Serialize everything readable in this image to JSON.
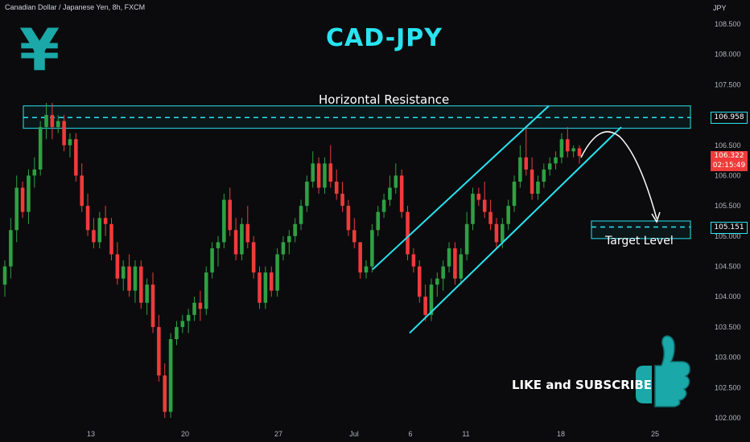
{
  "header": {
    "symbol_line": "Canadian Dollar / Japanese Yen, 8h, FXCM",
    "currency": "JPY"
  },
  "overlay": {
    "title": "CAD-JPY",
    "yen_symbol": "¥",
    "resistance_label": "Horizontal Resistance",
    "target_label": "Target Level",
    "like_label": "LIKE and SUBSCRIBE",
    "thumb_icon": "thumbs-up-icon"
  },
  "price_tags": {
    "resistance": "106.958",
    "current": "106.322",
    "countdown": "02:15:49",
    "target": "105.151"
  },
  "colors": {
    "up": "#2ea043",
    "down": "#ef3b3b",
    "accent": "#29e3f0",
    "thumb": "#1aa8a8"
  },
  "chart_data": {
    "type": "candlestick",
    "title": "",
    "xlabel": "",
    "ylabel": "",
    "ylim": [
      101.95,
      108.6
    ],
    "y_ticks": [
      "108.500",
      "108.000",
      "107.500",
      "107.000",
      "106.500",
      "106.000",
      "105.500",
      "105.000",
      "104.500",
      "104.000",
      "103.500",
      "103.000",
      "102.500",
      "102.000"
    ],
    "x_ticks": [
      "13",
      "20",
      "27",
      "Jul",
      "6",
      "11",
      "18",
      "25"
    ],
    "resistance_zone": [
      106.78,
      107.15
    ],
    "resistance_level": 106.958,
    "target_zone": [
      104.96,
      105.25
    ],
    "target_level": 105.151,
    "current_price": 106.322,
    "channel": {
      "upper": {
        "from": 104.45,
        "to": 107.15
      },
      "lower": {
        "from": 103.4,
        "to": 106.8
      }
    },
    "candles": [
      [
        104.2,
        104.6,
        104.0,
        104.5
      ],
      [
        104.5,
        105.3,
        104.3,
        105.1
      ],
      [
        105.1,
        106.0,
        104.9,
        105.8
      ],
      [
        105.8,
        105.9,
        105.3,
        105.4
      ],
      [
        105.4,
        106.1,
        105.2,
        106.0
      ],
      [
        106.0,
        106.3,
        105.8,
        106.1
      ],
      [
        106.1,
        106.9,
        106.0,
        106.8
      ],
      [
        106.8,
        107.2,
        106.6,
        107.0
      ],
      [
        107.0,
        107.2,
        106.6,
        106.8
      ],
      [
        106.8,
        107.0,
        106.7,
        106.9
      ],
      [
        106.9,
        107.0,
        106.4,
        106.5
      ],
      [
        106.5,
        106.7,
        106.3,
        106.6
      ],
      [
        106.6,
        106.7,
        105.9,
        106.0
      ],
      [
        106.0,
        106.2,
        105.4,
        105.5
      ],
      [
        105.5,
        105.7,
        105.0,
        105.1
      ],
      [
        105.1,
        105.3,
        104.8,
        104.9
      ],
      [
        104.9,
        105.4,
        104.8,
        105.3
      ],
      [
        105.3,
        105.5,
        105.0,
        105.2
      ],
      [
        105.2,
        105.3,
        104.6,
        104.7
      ],
      [
        104.7,
        104.9,
        104.2,
        104.3
      ],
      [
        104.3,
        104.6,
        104.1,
        104.5
      ],
      [
        104.5,
        104.7,
        104.0,
        104.1
      ],
      [
        104.1,
        104.6,
        103.9,
        104.5
      ],
      [
        104.5,
        104.6,
        103.8,
        103.9
      ],
      [
        103.9,
        104.3,
        103.7,
        104.2
      ],
      [
        104.2,
        104.4,
        103.4,
        103.5
      ],
      [
        103.5,
        103.7,
        102.6,
        102.7
      ],
      [
        102.7,
        102.9,
        102.0,
        102.1
      ],
      [
        102.1,
        103.4,
        102.0,
        103.3
      ],
      [
        103.3,
        103.6,
        103.2,
        103.5
      ],
      [
        103.5,
        103.7,
        103.4,
        103.6
      ],
      [
        103.6,
        103.8,
        103.4,
        103.7
      ],
      [
        103.7,
        104.0,
        103.6,
        103.9
      ],
      [
        103.9,
        104.1,
        103.6,
        103.8
      ],
      [
        103.8,
        104.5,
        103.7,
        104.4
      ],
      [
        104.4,
        104.9,
        104.3,
        104.8
      ],
      [
        104.8,
        105.0,
        104.5,
        104.9
      ],
      [
        104.9,
        105.7,
        104.8,
        105.6
      ],
      [
        105.6,
        105.8,
        105.0,
        105.1
      ],
      [
        105.1,
        105.3,
        104.6,
        104.7
      ],
      [
        104.7,
        105.3,
        104.6,
        105.2
      ],
      [
        105.2,
        105.5,
        104.8,
        104.9
      ],
      [
        104.9,
        105.0,
        104.3,
        104.4
      ],
      [
        104.4,
        104.5,
        103.8,
        103.9
      ],
      [
        103.9,
        104.5,
        103.8,
        104.4
      ],
      [
        104.4,
        104.5,
        104.0,
        104.1
      ],
      [
        104.1,
        104.8,
        104.0,
        104.7
      ],
      [
        104.7,
        105.0,
        104.6,
        104.9
      ],
      [
        104.9,
        105.1,
        104.7,
        105.0
      ],
      [
        105.0,
        105.3,
        104.9,
        105.2
      ],
      [
        105.2,
        105.6,
        105.1,
        105.5
      ],
      [
        105.5,
        106.0,
        105.4,
        105.9
      ],
      [
        105.9,
        106.4,
        105.8,
        106.2
      ],
      [
        106.2,
        106.3,
        105.7,
        105.8
      ],
      [
        105.8,
        106.3,
        105.7,
        106.2
      ],
      [
        106.2,
        106.5,
        105.8,
        105.9
      ],
      [
        105.9,
        106.1,
        105.6,
        105.7
      ],
      [
        105.7,
        105.9,
        105.4,
        105.5
      ],
      [
        105.5,
        105.6,
        105.0,
        105.1
      ],
      [
        105.1,
        105.3,
        104.8,
        104.9
      ],
      [
        104.9,
        104.9,
        104.3,
        104.4
      ],
      [
        104.4,
        104.6,
        104.3,
        104.5
      ],
      [
        104.5,
        105.2,
        104.4,
        105.1
      ],
      [
        105.1,
        105.5,
        105.0,
        105.4
      ],
      [
        105.4,
        105.7,
        105.3,
        105.6
      ],
      [
        105.6,
        106.0,
        105.5,
        105.8
      ],
      [
        105.8,
        106.2,
        105.7,
        106.0
      ],
      [
        106.0,
        106.1,
        105.3,
        105.4
      ],
      [
        105.4,
        105.5,
        104.6,
        104.7
      ],
      [
        104.7,
        104.8,
        104.4,
        104.5
      ],
      [
        104.5,
        104.6,
        103.9,
        104.0
      ],
      [
        104.0,
        104.2,
        103.6,
        103.7
      ],
      [
        103.7,
        104.3,
        103.6,
        104.2
      ],
      [
        104.2,
        104.4,
        104.0,
        104.3
      ],
      [
        104.3,
        104.6,
        104.1,
        104.5
      ],
      [
        104.5,
        104.9,
        104.4,
        104.8
      ],
      [
        104.8,
        104.9,
        104.2,
        104.3
      ],
      [
        104.3,
        104.8,
        104.2,
        104.7
      ],
      [
        104.7,
        105.4,
        104.6,
        105.2
      ],
      [
        105.2,
        105.8,
        105.1,
        105.7
      ],
      [
        105.7,
        105.8,
        105.5,
        105.6
      ],
      [
        105.6,
        105.9,
        105.3,
        105.4
      ],
      [
        105.4,
        105.6,
        105.1,
        105.2
      ],
      [
        105.2,
        105.3,
        104.8,
        104.9
      ],
      [
        104.9,
        105.3,
        104.8,
        105.2
      ],
      [
        105.2,
        105.6,
        105.1,
        105.5
      ],
      [
        105.5,
        106.0,
        105.4,
        105.9
      ],
      [
        105.9,
        106.5,
        105.8,
        106.3
      ],
      [
        106.3,
        106.8,
        106.0,
        106.1
      ],
      [
        106.1,
        106.3,
        105.6,
        105.7
      ],
      [
        105.7,
        106.0,
        105.6,
        105.9
      ],
      [
        105.9,
        106.2,
        105.8,
        106.1
      ],
      [
        106.1,
        106.3,
        106.0,
        106.2
      ],
      [
        106.2,
        106.4,
        106.1,
        106.3
      ],
      [
        106.3,
        106.7,
        106.2,
        106.6
      ],
      [
        106.6,
        106.8,
        106.3,
        106.4
      ],
      [
        106.4,
        106.5,
        106.3,
        106.45
      ],
      [
        106.45,
        106.5,
        106.2,
        106.322
      ]
    ]
  }
}
